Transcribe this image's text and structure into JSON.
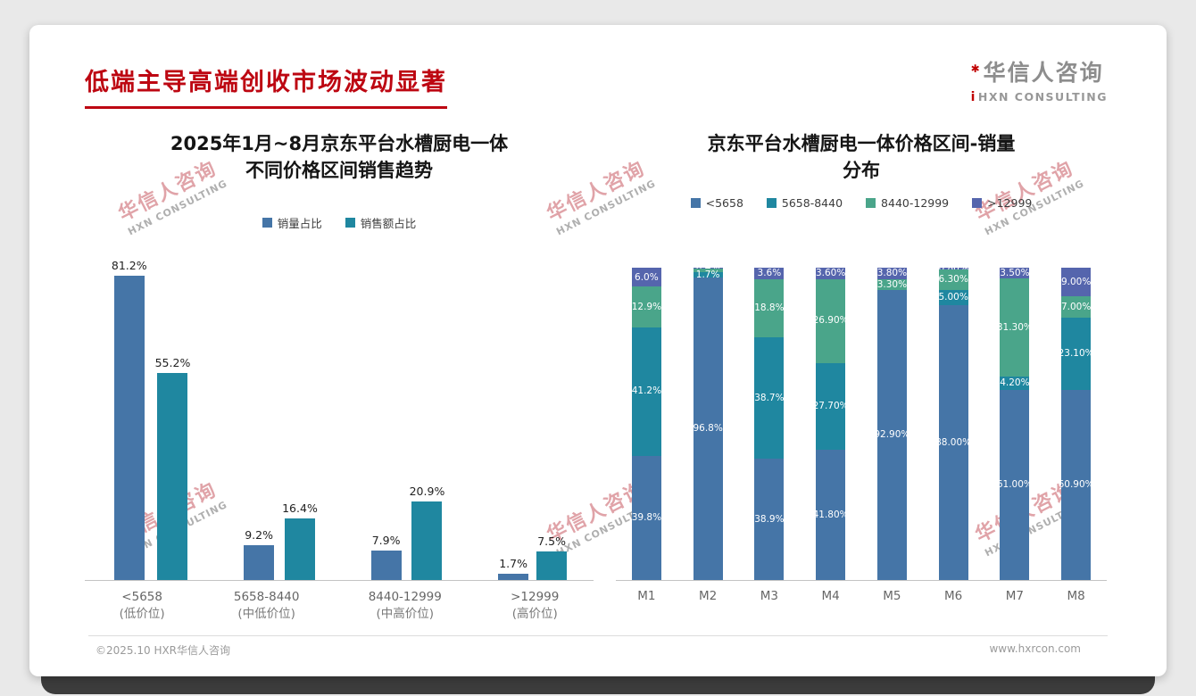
{
  "slide": {
    "title": "低端主导高端创收市场波动显著",
    "footer": {
      "left": "©2025.10 HXR华信人咨询",
      "right": "www.hxrcon.com"
    }
  },
  "logo": {
    "mark": "✱",
    "cn": "华信人咨询",
    "en_prefix": "i",
    "en": "HXN CONSULTING",
    "accent_color": "#c00000"
  },
  "watermark": {
    "cn": "华信人咨询",
    "en": "HXN CONSULTING"
  },
  "chart_data": [
    {
      "type": "bar",
      "title_lines": [
        "2025年1月~8月京东平台水槽厨电一体",
        "不同价格区间销售趋势"
      ],
      "legend_position": "top",
      "grid": false,
      "ylim": [
        0,
        85
      ],
      "categories": [
        "<5658",
        "5658-8440",
        "8440-12999",
        ">12999"
      ],
      "category_sublabels": [
        "(低价位)",
        "(中低价位)",
        "(中高价位)",
        "(高价位)"
      ],
      "series": [
        {
          "name": "销量占比",
          "color": "#4575a7",
          "values": [
            81.2,
            9.2,
            7.9,
            1.7
          ],
          "labels": [
            "81.2%",
            "9.2%",
            "7.9%",
            "1.7%"
          ]
        },
        {
          "name": "销售额占比",
          "color": "#1f87a0",
          "values": [
            55.2,
            16.4,
            20.9,
            7.5
          ],
          "labels": [
            "55.2%",
            "16.4%",
            "20.9%",
            "7.5%"
          ]
        }
      ]
    },
    {
      "type": "stacked-bar",
      "title_lines": [
        "京东平台水槽厨电一体价格区间-销量",
        "分布"
      ],
      "legend_position": "top",
      "grid": false,
      "ylim": [
        0,
        100
      ],
      "categories": [
        "M1",
        "M2",
        "M3",
        "M4",
        "M5",
        "M6",
        "M7",
        "M8"
      ],
      "series": [
        {
          "name": "<5658",
          "color": "#4575a7",
          "values": [
            39.8,
            96.8,
            38.9,
            41.8,
            92.9,
            88.0,
            61.0,
            60.9
          ],
          "labels": [
            "39.8%",
            "96.8%",
            "38.9%",
            "41.80%",
            "92.90%",
            "88.00%",
            "61.00%",
            "60.90%"
          ]
        },
        {
          "name": "5658-8440",
          "color": "#1f87a0",
          "values": [
            41.2,
            1.7,
            38.7,
            27.7,
            0,
            5.0,
            4.2,
            23.1
          ],
          "labels": [
            "41.2%",
            "1.7%",
            "38.7%",
            "27.70%",
            "",
            "5.00%",
            "4.20%",
            "23.10%"
          ]
        },
        {
          "name": "8440-12999",
          "color": "#4aa58a",
          "values": [
            12.9,
            1.1,
            18.8,
            26.9,
            3.3,
            6.3,
            31.3,
            7.0
          ],
          "labels": [
            "12.9%",
            "",
            "18.8%",
            "26.90%",
            "3.30%",
            "6.30%",
            "31.30%",
            "7.00%"
          ]
        },
        {
          "name": ">12999",
          "color": "#5565ad",
          "values": [
            6.0,
            0.4,
            3.6,
            3.6,
            3.8,
            0.8,
            3.5,
            9.0
          ],
          "labels": [
            "6.0%",
            "0.4%",
            "3.6%",
            "3.60%",
            "3.80%",
            "0.80%",
            "3.50%",
            "9.00%"
          ]
        }
      ]
    }
  ]
}
